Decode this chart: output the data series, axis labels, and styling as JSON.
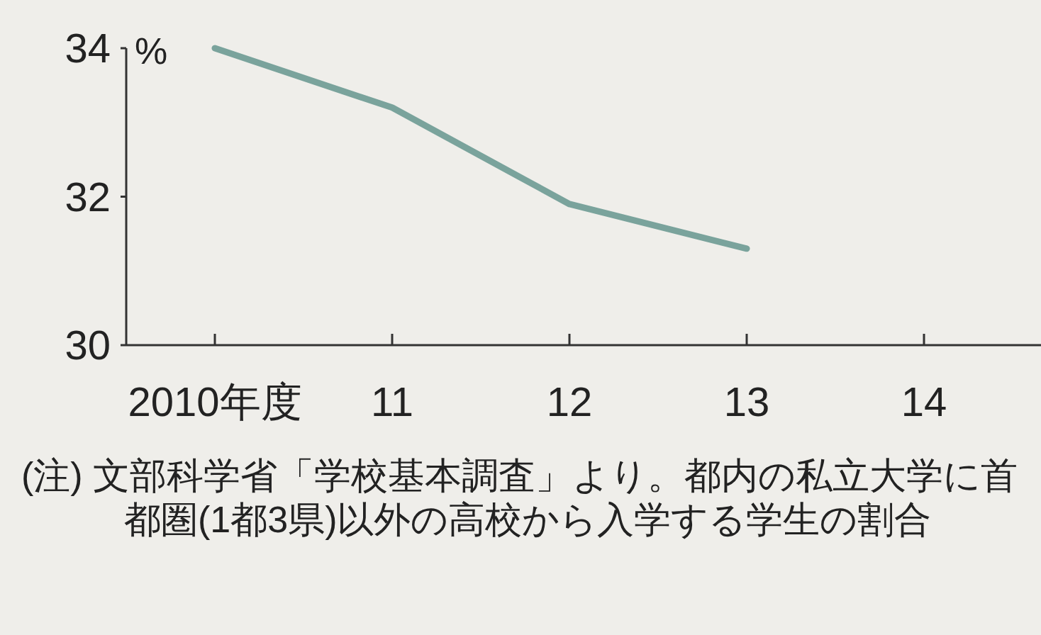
{
  "chart_data": {
    "type": "line",
    "ylabel": "%",
    "categories": [
      "2010年度",
      "11",
      "12",
      "13",
      "14"
    ],
    "series": [
      {
        "color": "#7aa39c",
        "values": [
          34.0,
          33.2,
          31.9,
          31.3,
          null
        ]
      }
    ],
    "ylim": [
      30,
      34
    ],
    "yticks": [
      30,
      32,
      34
    ],
    "grid": false,
    "annotations": [
      "(注) 文部科学省「学校基本調査」より。都内の私立大学に首都圏(1都3県)以外の高校から入学する学生の割合"
    ]
  }
}
